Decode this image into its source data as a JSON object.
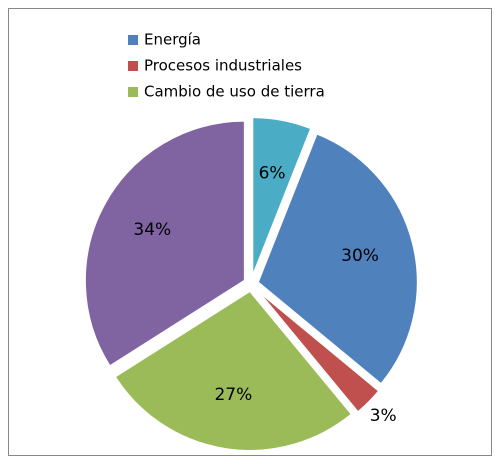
{
  "chart_data": {
    "type": "pie",
    "categories": [
      "Energía",
      "Procesos industriales",
      "Cambio de uso de tierra",
      null,
      null
    ],
    "values": [
      30,
      3,
      27,
      34,
      6
    ],
    "value_labels": [
      "30%",
      "3%",
      "27%",
      "34%",
      "6%"
    ],
    "colors": [
      "#4f81bd",
      "#c0504d",
      "#9bbb59",
      "#8064a2",
      "#4bacc6"
    ],
    "legend": "top-left"
  }
}
